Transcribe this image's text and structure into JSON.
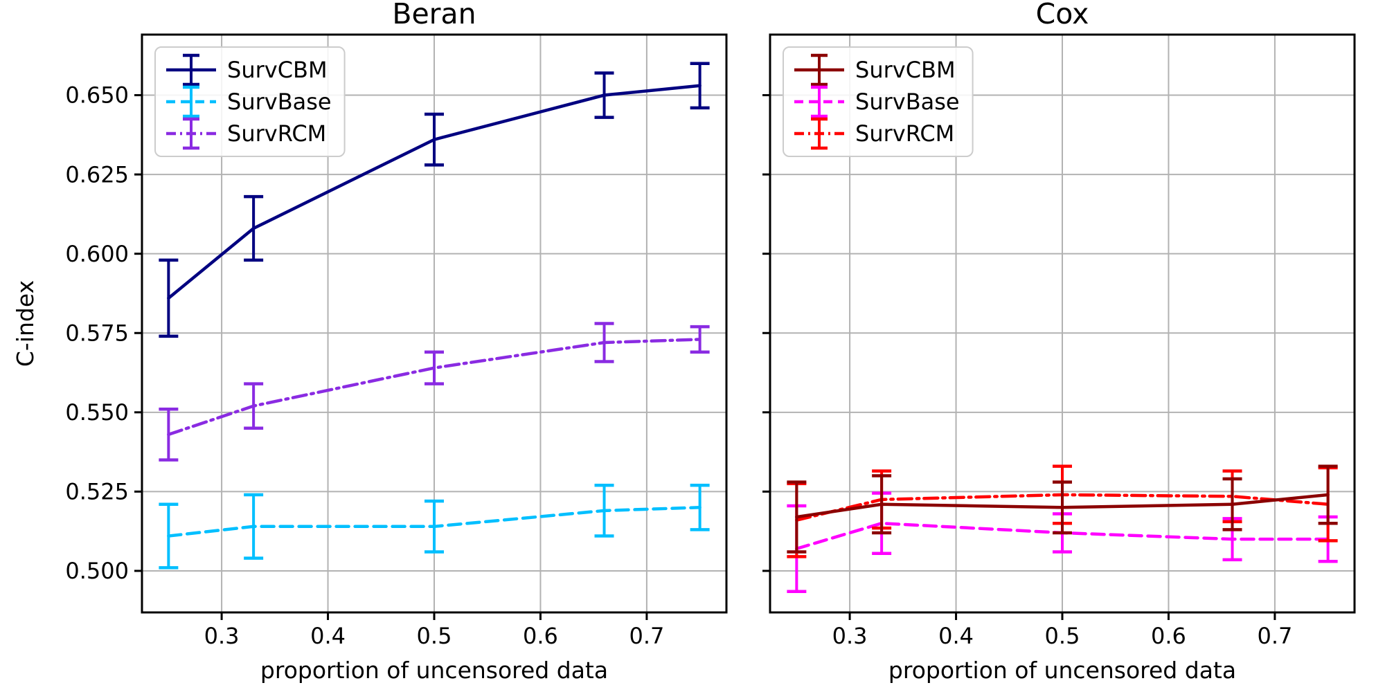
{
  "figure": {
    "background": "#ffffff"
  },
  "chart_data": [
    {
      "type": "line",
      "title": "Beran",
      "xlabel": "proportion of uncensored data",
      "ylabel": "C-index",
      "xlim": [
        0.225,
        0.775
      ],
      "ylim": [
        0.4869,
        0.6691
      ],
      "grid": true,
      "legend_position": "upper left",
      "x": [
        0.25,
        0.33,
        0.5,
        0.66,
        0.75
      ],
      "xticks": {
        "values": [
          0.3,
          0.4,
          0.5,
          0.6,
          0.7
        ],
        "labels": [
          "0.3",
          "0.4",
          "0.5",
          "0.6",
          "0.7"
        ]
      },
      "yticks": {
        "values": [
          0.5,
          0.525,
          0.55,
          0.575,
          0.6,
          0.625,
          0.65
        ],
        "labels": [
          "0.500",
          "0.525",
          "0.550",
          "0.575",
          "0.600",
          "0.625",
          "0.650"
        ],
        "labels_shown": true
      },
      "series": [
        {
          "name": "SurvCBM",
          "color": "#000080",
          "linestyle": "solid",
          "values": [
            0.586,
            0.608,
            0.636,
            0.65,
            0.653
          ],
          "errors": [
            0.012,
            0.01,
            0.008,
            0.007,
            0.007
          ]
        },
        {
          "name": "SurvBase",
          "color": "#00BFFF",
          "linestyle": "dashed",
          "values": [
            0.511,
            0.514,
            0.514,
            0.519,
            0.52
          ],
          "errors": [
            0.01,
            0.01,
            0.008,
            0.008,
            0.007
          ]
        },
        {
          "name": "SurvRCM",
          "color": "#8A2BE2",
          "linestyle": "dashdot",
          "values": [
            0.543,
            0.552,
            0.564,
            0.572,
            0.573
          ],
          "errors": [
            0.008,
            0.007,
            0.005,
            0.006,
            0.004
          ]
        }
      ]
    },
    {
      "type": "line",
      "title": "Cox",
      "xlabel": "proportion of uncensored data",
      "ylabel": "",
      "xlim": [
        0.225,
        0.775
      ],
      "ylim": [
        0.4869,
        0.6691
      ],
      "grid": true,
      "legend_position": "upper left",
      "x": [
        0.25,
        0.33,
        0.5,
        0.66,
        0.75
      ],
      "xticks": {
        "values": [
          0.3,
          0.4,
          0.5,
          0.6,
          0.7
        ],
        "labels": [
          "0.3",
          "0.4",
          "0.5",
          "0.6",
          "0.7"
        ]
      },
      "yticks": {
        "values": [
          0.5,
          0.525,
          0.55,
          0.575,
          0.6,
          0.625,
          0.65
        ],
        "labels": [
          "0.500",
          "0.525",
          "0.550",
          "0.575",
          "0.600",
          "0.625",
          "0.650"
        ],
        "labels_shown": false
      },
      "series": [
        {
          "name": "SurvCBM",
          "color": "#8B0000",
          "linestyle": "solid",
          "values": [
            0.517,
            0.521,
            0.52,
            0.521,
            0.524
          ],
          "errors": [
            0.011,
            0.009,
            0.008,
            0.008,
            0.009
          ]
        },
        {
          "name": "SurvBase",
          "color": "#FF00FF",
          "linestyle": "dashed",
          "values": [
            0.507,
            0.515,
            0.512,
            0.51,
            0.51
          ],
          "errors": [
            0.0135,
            0.0095,
            0.006,
            0.0065,
            0.007
          ]
        },
        {
          "name": "SurvRCM",
          "color": "#FF0000",
          "linestyle": "dashdot",
          "values": [
            0.516,
            0.5225,
            0.524,
            0.5235,
            0.521
          ],
          "errors": [
            0.0115,
            0.009,
            0.009,
            0.008,
            0.0115
          ]
        }
      ]
    }
  ]
}
